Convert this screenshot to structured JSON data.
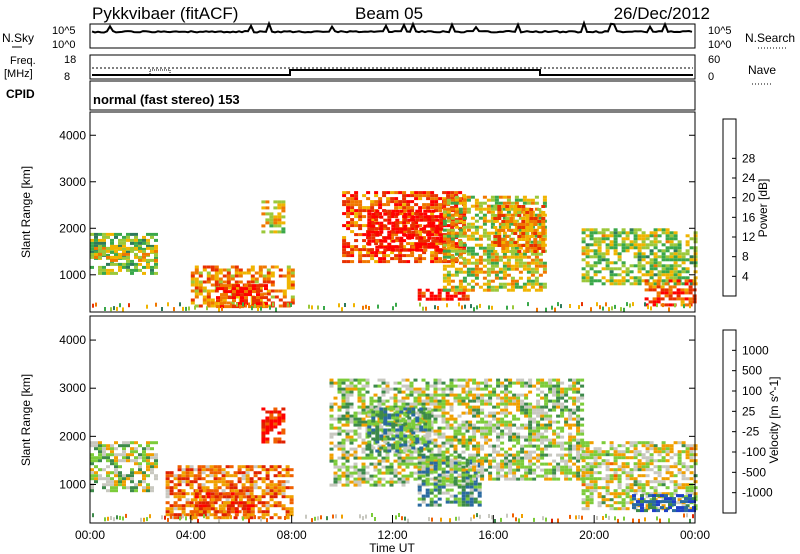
{
  "header": {
    "station": "Pykkvibaer (fitACF)",
    "beam": "Beam 05",
    "date": "26/Dec/2012"
  },
  "status_panels": {
    "nsky": {
      "left_label": "N.Sky",
      "right_label": "N.Search",
      "ticks_left": [
        "10^5",
        "10^0"
      ],
      "ticks_right": [
        "10^5",
        "10^0"
      ]
    },
    "freq": {
      "left_label_1": "Freq.",
      "left_label_2": "[MHz]",
      "right_label": "Nave",
      "ticks_left": [
        "18",
        "8"
      ],
      "ticks_right": [
        "60",
        "0"
      ]
    },
    "cpid": {
      "label": "CPID",
      "text": "normal (fast stereo) 153"
    }
  },
  "chart_data": [
    {
      "type": "heatmap",
      "name": "power",
      "ylabel": "Slant Range [km]",
      "xlabel": "",
      "xlim": [
        0,
        24
      ],
      "ylim": [
        200,
        4500
      ],
      "y_ticks": [
        "1000",
        "2000",
        "3000",
        "4000"
      ],
      "colorbar": {
        "label": "Power [dB]",
        "ticks": [
          "4",
          "8",
          "12",
          "16",
          "20",
          "24",
          "28"
        ],
        "colors": [
          "#0000ff",
          "#1f3fa8",
          "#2e7a5a",
          "#3aa84a",
          "#9bc83a",
          "#f0b400",
          "#f07800",
          "#e83000",
          "#ff0000"
        ]
      },
      "regions": [
        {
          "t": [
            0.0,
            2.6
          ],
          "r": [
            1000,
            1900
          ],
          "level": 0.45
        },
        {
          "t": [
            0.0,
            2.6
          ],
          "r": [
            1300,
            1600
          ],
          "level": 0.6
        },
        {
          "t": [
            4.0,
            8.0
          ],
          "r": [
            300,
            1200
          ],
          "level": 0.7
        },
        {
          "t": [
            5.0,
            7.0
          ],
          "r": [
            300,
            800
          ],
          "level": 0.85
        },
        {
          "t": [
            6.8,
            7.6
          ],
          "r": [
            1900,
            2600
          ],
          "level": 0.6
        },
        {
          "t": [
            10.0,
            14.8
          ],
          "r": [
            1300,
            2800
          ],
          "level": 0.8
        },
        {
          "t": [
            11.0,
            14.0
          ],
          "r": [
            1500,
            2400
          ],
          "level": 0.95
        },
        {
          "t": [
            13.0,
            15.0
          ],
          "r": [
            450,
            700
          ],
          "level": 0.9
        },
        {
          "t": [
            14.0,
            18.0
          ],
          "r": [
            700,
            2700
          ],
          "level": 0.55
        },
        {
          "t": [
            16.0,
            18.0
          ],
          "r": [
            1500,
            2500
          ],
          "level": 0.7
        },
        {
          "t": [
            19.5,
            24.0
          ],
          "r": [
            800,
            2000
          ],
          "level": 0.5
        },
        {
          "t": [
            22.0,
            24.0
          ],
          "r": [
            350,
            900
          ],
          "level": 0.8
        }
      ]
    },
    {
      "type": "heatmap",
      "name": "velocity",
      "ylabel": "Slant Range [km]",
      "xlabel": "Time UT",
      "xlim": [
        0,
        24
      ],
      "ylim": [
        200,
        4500
      ],
      "x_ticks": [
        "00:00",
        "04:00",
        "08:00",
        "12:00",
        "16:00",
        "20:00",
        "00:00"
      ],
      "y_ticks": [
        "1000",
        "2000",
        "3000",
        "4000"
      ],
      "colorbar": {
        "label": "Velocity [m s^-1]",
        "ticks": [
          "1000",
          "500",
          "100",
          "25",
          "-25",
          "-100",
          "-500",
          "-1000"
        ],
        "colors": [
          "#1e40c8",
          "#2a6aa0",
          "#3d8a4a",
          "#7ccc3a",
          "#c8c8c0",
          "#f0a000",
          "#f06000",
          "#e02000",
          "#ff0000"
        ]
      },
      "regions": [
        {
          "t": [
            0.0,
            2.6
          ],
          "r": [
            900,
            1900
          ],
          "level": 0.45
        },
        {
          "t": [
            3.0,
            8.0
          ],
          "r": [
            300,
            1400
          ],
          "level": 0.7
        },
        {
          "t": [
            4.0,
            6.5
          ],
          "r": [
            400,
            900
          ],
          "level": 0.75
        },
        {
          "t": [
            6.8,
            7.6
          ],
          "r": [
            1900,
            2600
          ],
          "level": 0.85
        },
        {
          "t": [
            9.5,
            15.0
          ],
          "r": [
            1000,
            3200
          ],
          "level": 0.45
        },
        {
          "t": [
            11.0,
            13.5
          ],
          "r": [
            1700,
            2600
          ],
          "level": 0.3
        },
        {
          "t": [
            13.0,
            15.5
          ],
          "r": [
            600,
            1600
          ],
          "level": 0.3
        },
        {
          "t": [
            15.0,
            19.5
          ],
          "r": [
            1100,
            3200
          ],
          "level": 0.45
        },
        {
          "t": [
            19.5,
            24.0
          ],
          "r": [
            500,
            1900
          ],
          "level": 0.5
        },
        {
          "t": [
            21.5,
            24.0
          ],
          "r": [
            450,
            800
          ],
          "level": 0.1
        }
      ]
    }
  ]
}
